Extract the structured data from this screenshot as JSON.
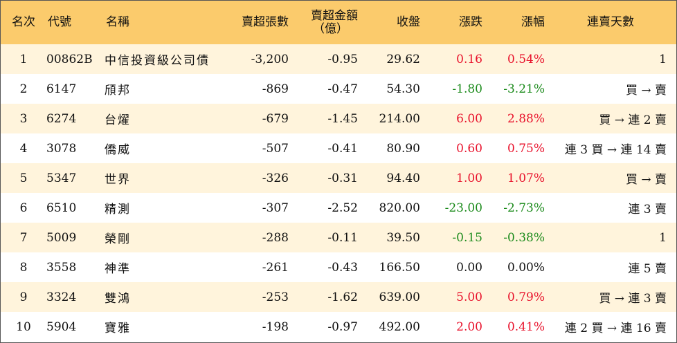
{
  "header": {
    "rank": "名次",
    "code": "代號",
    "name": "名稱",
    "sell_volume": "賣超張數",
    "sell_amount_line1": "賣超金額",
    "sell_amount_line2": "（億）",
    "close": "收盤",
    "change": "漲跌",
    "pct": "漲幅",
    "days": "連賣天數"
  },
  "colors": {
    "header_bg": "#fbcb6c",
    "stripe_bg": "#fff4dc",
    "up": "#e8102a",
    "down": "#1a8a1a"
  },
  "rows": [
    {
      "rank": "1",
      "code": "00862B",
      "name": "中信投資級公司債",
      "sell_volume": "-3,200",
      "sell_amount": "-0.95",
      "close": "29.62",
      "change": "0.16",
      "pct": "0.54%",
      "dir": "pos",
      "days": "1"
    },
    {
      "rank": "2",
      "code": "6147",
      "name": "頎邦",
      "sell_volume": "-869",
      "sell_amount": "-0.47",
      "close": "54.30",
      "change": "-1.80",
      "pct": "-3.21%",
      "dir": "neg",
      "days": "買 → 賣"
    },
    {
      "rank": "3",
      "code": "6274",
      "name": "台燿",
      "sell_volume": "-679",
      "sell_amount": "-1.45",
      "close": "214.00",
      "change": "6.00",
      "pct": "2.88%",
      "dir": "pos",
      "days": "買 → 連 2 賣"
    },
    {
      "rank": "4",
      "code": "3078",
      "name": "僑威",
      "sell_volume": "-507",
      "sell_amount": "-0.41",
      "close": "80.90",
      "change": "0.60",
      "pct": "0.75%",
      "dir": "pos",
      "days": "連 3 買 → 連 14 賣"
    },
    {
      "rank": "5",
      "code": "5347",
      "name": "世界",
      "sell_volume": "-326",
      "sell_amount": "-0.31",
      "close": "94.40",
      "change": "1.00",
      "pct": "1.07%",
      "dir": "pos",
      "days": "買 → 賣"
    },
    {
      "rank": "6",
      "code": "6510",
      "name": "精測",
      "sell_volume": "-307",
      "sell_amount": "-2.52",
      "close": "820.00",
      "change": "-23.00",
      "pct": "-2.73%",
      "dir": "neg",
      "days": "連 3 賣"
    },
    {
      "rank": "7",
      "code": "5009",
      "name": "榮剛",
      "sell_volume": "-288",
      "sell_amount": "-0.11",
      "close": "39.50",
      "change": "-0.15",
      "pct": "-0.38%",
      "dir": "neg",
      "days": "1"
    },
    {
      "rank": "8",
      "code": "3558",
      "name": "神準",
      "sell_volume": "-261",
      "sell_amount": "-0.43",
      "close": "166.50",
      "change": "0.00",
      "pct": "0.00%",
      "dir": "flat",
      "days": "連 5 賣"
    },
    {
      "rank": "9",
      "code": "3324",
      "name": "雙鴻",
      "sell_volume": "-253",
      "sell_amount": "-1.62",
      "close": "639.00",
      "change": "5.00",
      "pct": "0.79%",
      "dir": "pos",
      "days": "買 → 連 3 賣"
    },
    {
      "rank": "10",
      "code": "5904",
      "name": "寶雅",
      "sell_volume": "-198",
      "sell_amount": "-0.97",
      "close": "492.00",
      "change": "2.00",
      "pct": "0.41%",
      "dir": "pos",
      "days": "連 2 買 → 連 16 賣"
    }
  ]
}
